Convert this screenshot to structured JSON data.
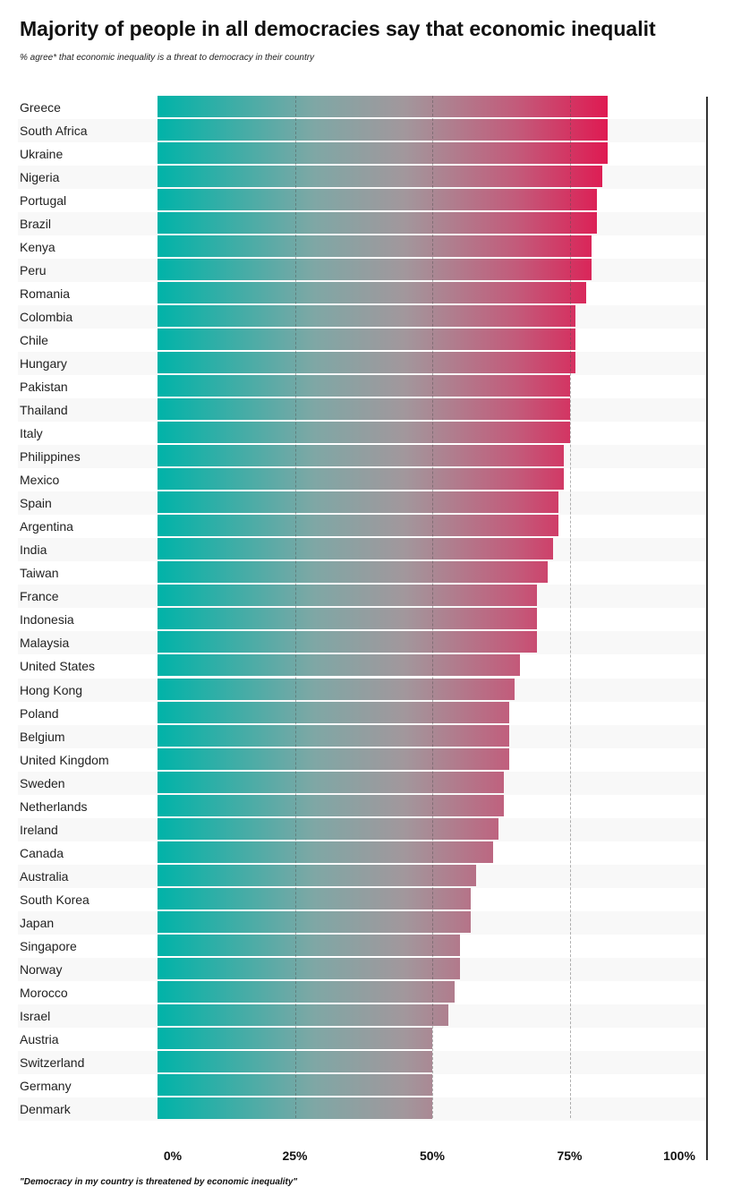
{
  "chart_data": {
    "type": "bar",
    "orientation": "horizontal",
    "title": "Majority of people in all democracies say that economic inequalit",
    "subtitle": "% agree* that economic inequality is a threat to democracy in their country",
    "footnote": "\"Democracy in my country is threatened by economic inequality\"",
    "categories": [
      "Greece",
      "South Africa",
      "Ukraine",
      "Nigeria",
      "Portugal",
      "Brazil",
      "Kenya",
      "Peru",
      "Romania",
      "Colombia",
      "Chile",
      "Hungary",
      "Pakistan",
      "Thailand",
      "Italy",
      "Philippines",
      "Mexico",
      "Spain",
      "Argentina",
      "India",
      "Taiwan",
      "France",
      "Indonesia",
      "Malaysia",
      "United States",
      "Hong Kong",
      "Poland",
      "Belgium",
      "United Kingdom",
      "Sweden",
      "Netherlands",
      "Ireland",
      "Canada",
      "Australia",
      "South Korea",
      "Japan",
      "Singapore",
      "Norway",
      "Morocco",
      "Israel",
      "Austria",
      "Switzerland",
      "Germany",
      "Denmark"
    ],
    "values": [
      82,
      82,
      82,
      81,
      80,
      80,
      79,
      79,
      78,
      76,
      76,
      76,
      75,
      75,
      75,
      74,
      74,
      73,
      73,
      72,
      71,
      69,
      69,
      69,
      66,
      65,
      64,
      64,
      64,
      63,
      63,
      62,
      61,
      58,
      57,
      57,
      55,
      55,
      54,
      53,
      50,
      50,
      50,
      50
    ],
    "xlim": [
      0,
      100
    ],
    "x_ticks": [
      "0%",
      "25%",
      "50%",
      "75%",
      "100%"
    ],
    "x_tick_values": [
      0,
      25,
      50,
      75,
      100
    ],
    "grid": true,
    "colors": {
      "low": "#00b3a8",
      "mid": "#a2979c",
      "high": "#df1a52"
    }
  }
}
